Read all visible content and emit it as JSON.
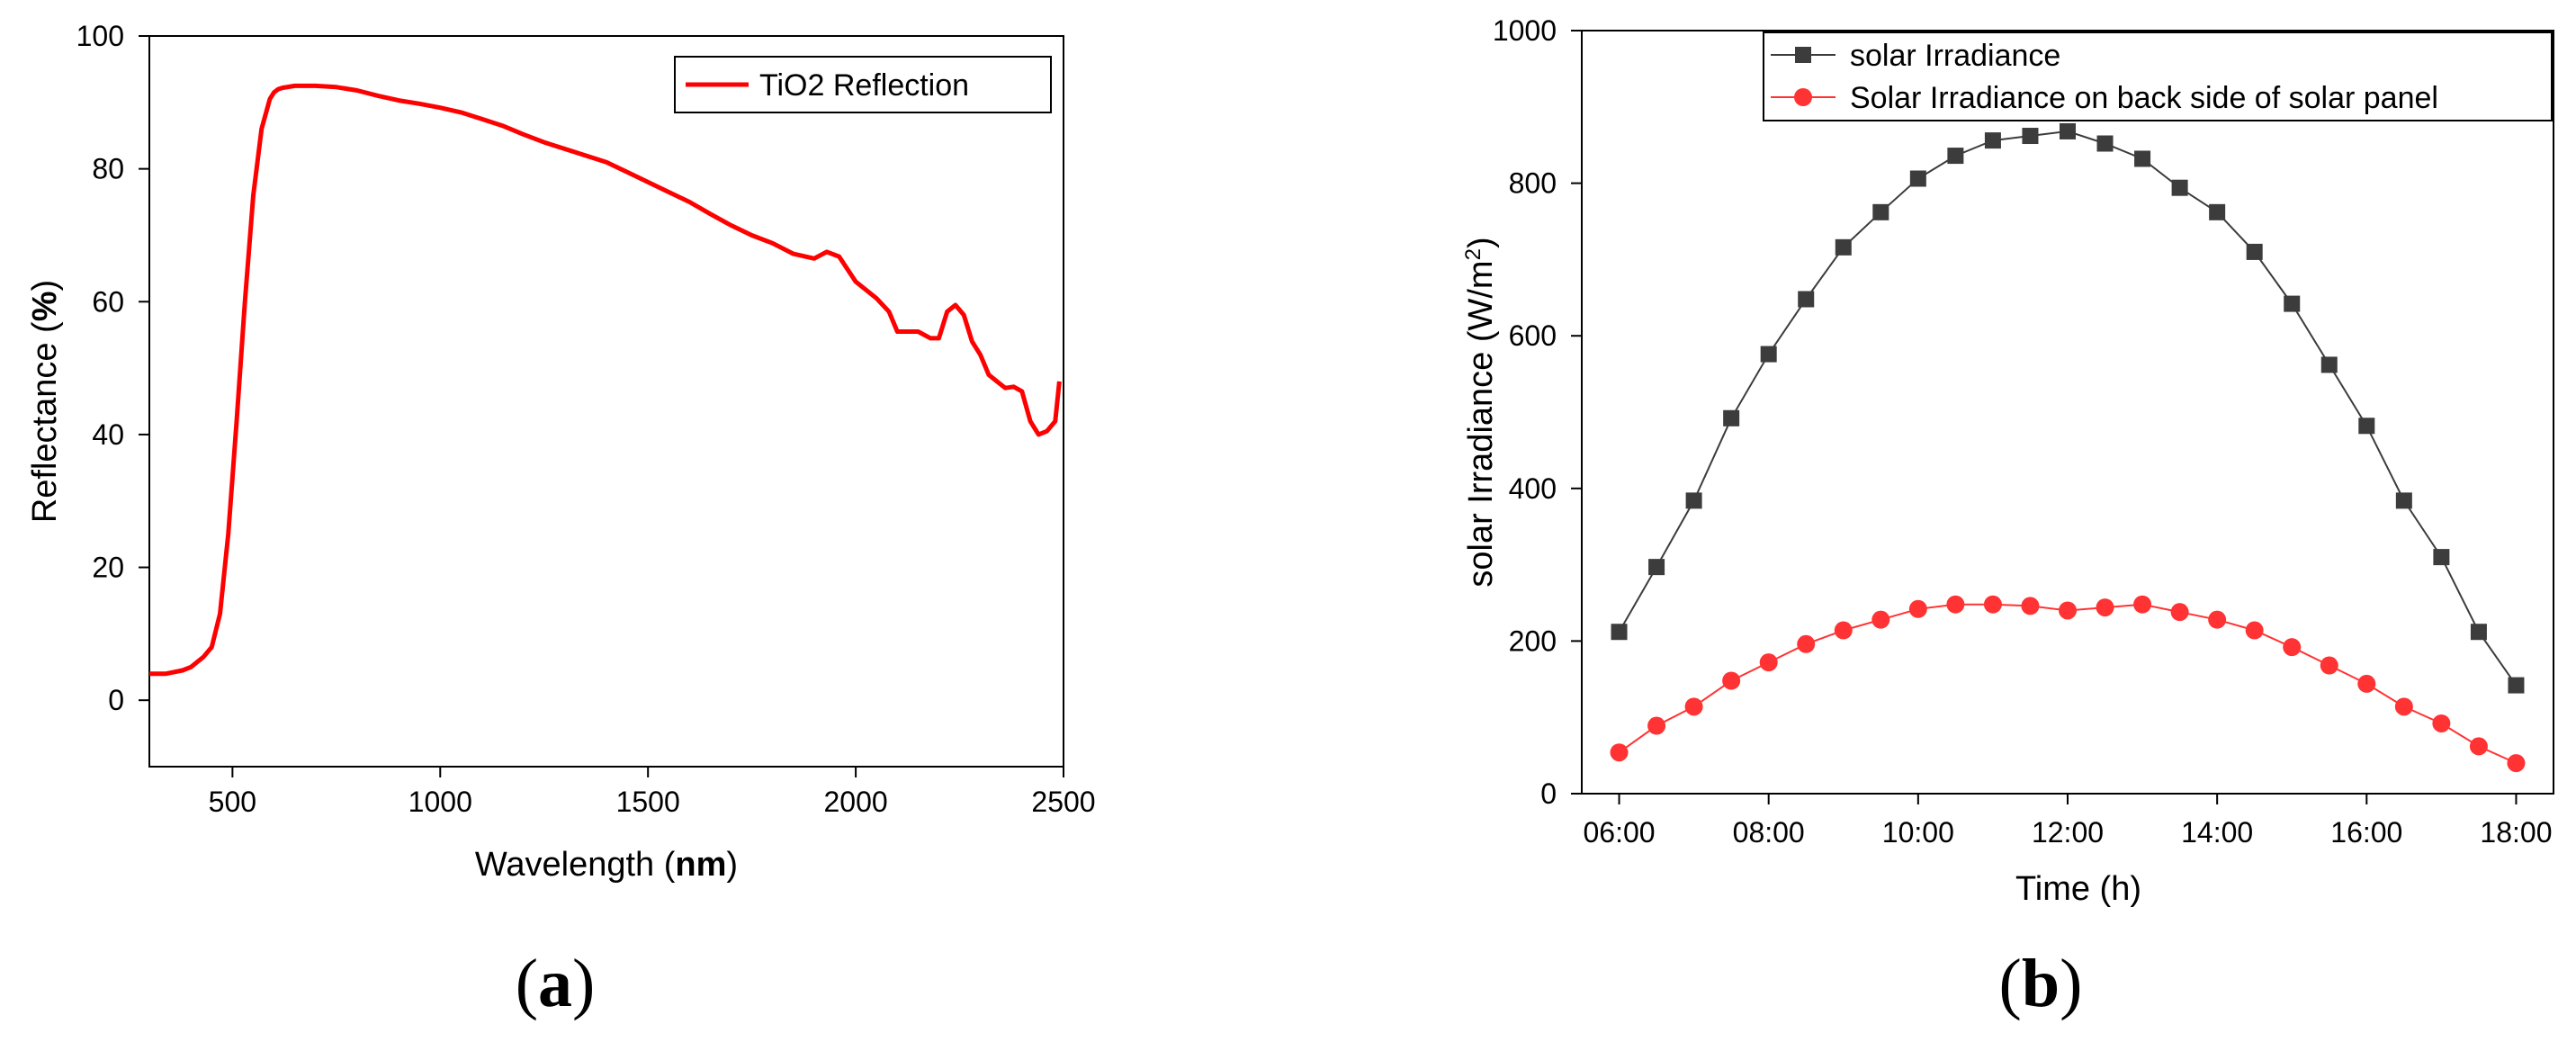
{
  "chart_data": [
    {
      "id": "a",
      "type": "line",
      "panel_label": "a",
      "xlabel_text": "Wavelength",
      "xlabel_unit": "nm",
      "ylabel_text": "Reflectance",
      "ylabel_unit": "%",
      "xlim": [
        300,
        2500
      ],
      "ylim": [
        -10,
        100
      ],
      "xticks": [
        500,
        1000,
        1500,
        2000,
        2500
      ],
      "yticks": [
        0,
        20,
        40,
        60,
        80,
        100
      ],
      "legend_position": "top-right",
      "series": [
        {
          "name": "TiO2 Reflection",
          "color": "#ff0000",
          "x": [
            300,
            340,
            380,
            400,
            430,
            450,
            470,
            490,
            510,
            530,
            550,
            570,
            590,
            600,
            610,
            620,
            650,
            700,
            750,
            800,
            850,
            900,
            950,
            1000,
            1050,
            1100,
            1150,
            1200,
            1250,
            1300,
            1350,
            1400,
            1450,
            1500,
            1550,
            1600,
            1650,
            1700,
            1750,
            1800,
            1850,
            1900,
            1930,
            1960,
            2000,
            2050,
            2080,
            2100,
            2120,
            2150,
            2180,
            2200,
            2220,
            2240,
            2260,
            2280,
            2300,
            2320,
            2340,
            2360,
            2380,
            2400,
            2420,
            2440,
            2460,
            2480,
            2490
          ],
          "y": [
            4,
            4,
            4.5,
            5,
            6.5,
            8,
            13,
            25,
            42,
            60,
            76,
            86,
            90.5,
            91.5,
            92,
            92.2,
            92.5,
            92.5,
            92.3,
            91.8,
            91,
            90.3,
            89.8,
            89.2,
            88.5,
            87.5,
            86.5,
            85.2,
            84,
            83,
            82,
            81,
            79.5,
            78,
            76.5,
            75,
            73.2,
            71.5,
            70,
            68.8,
            67.2,
            66.5,
            67.5,
            66.8,
            63,
            60.5,
            58.5,
            55.5,
            55.5,
            55.5,
            54.5,
            54.5,
            58.5,
            59.5,
            58,
            54,
            52,
            49,
            48,
            47,
            47.2,
            46.5,
            42,
            40,
            40.5,
            42,
            48
          ]
        }
      ]
    },
    {
      "id": "b",
      "type": "line",
      "panel_label": "b",
      "xlabel": "Time (h)",
      "ylabel_text": "solar Irradiance (W/m",
      "ylabel_sup": "2",
      "ylabel_close": ")",
      "xlim": [
        5.5,
        18.5
      ],
      "ylim": [
        0,
        1000
      ],
      "xticks": [
        6,
        8,
        10,
        12,
        14,
        16,
        18
      ],
      "xtick_labels": [
        "06:00",
        "08:00",
        "10:00",
        "12:00",
        "14:00",
        "16:00",
        "18:00"
      ],
      "yticks": [
        0,
        200,
        400,
        600,
        800,
        1000
      ],
      "legend_position": "top-right",
      "x": [
        6,
        6.5,
        7,
        7.5,
        8,
        8.5,
        9,
        9.5,
        10,
        10.5,
        11,
        11.5,
        12,
        12.5,
        13,
        13.5,
        14,
        14.5,
        15,
        15.5,
        16,
        16.5,
        17,
        17.5,
        18
      ],
      "series": [
        {
          "name": "solar Irradiance",
          "color": "#3c3c3c",
          "marker": "square",
          "values": [
            212,
            297,
            384,
            492,
            576,
            648,
            716,
            762,
            806,
            836,
            856,
            862,
            868,
            852,
            832,
            794,
            762,
            710,
            642,
            562,
            482,
            384,
            310,
            212,
            142
          ]
        },
        {
          "name": "Solar Irradiance on back side of solar panel",
          "color": "#ff3333",
          "marker": "circle",
          "values": [
            54,
            89,
            114,
            148,
            172,
            196,
            214,
            228,
            242,
            248,
            248,
            246,
            240,
            244,
            248,
            238,
            228,
            214,
            192,
            168,
            144,
            114,
            92,
            62,
            40
          ]
        }
      ]
    }
  ]
}
